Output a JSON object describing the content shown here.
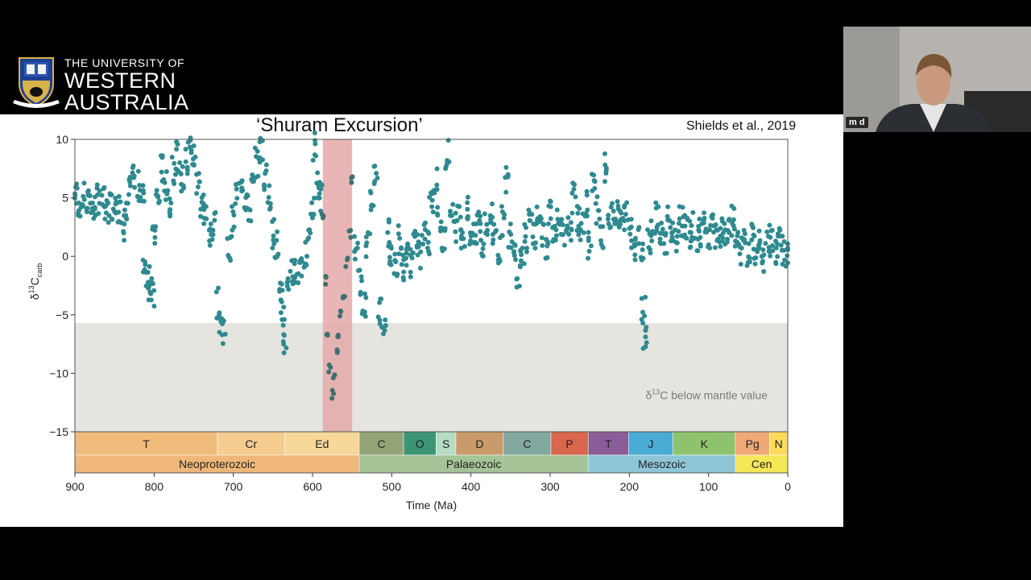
{
  "logo": {
    "line1": "THE UNIVERSITY OF",
    "line2": "WESTERN",
    "line3": "AUSTRALIA",
    "crest_icon": "uwa-crest-icon"
  },
  "slide": {
    "title": "‘Shuram Excursion’",
    "citation": "Shields et al., 2019",
    "shade_label_prefix": "δ",
    "shade_label_sup": "13",
    "shade_label_rest": "C below mantle value"
  },
  "webcam": {
    "participant_initials": "m d"
  },
  "colors": {
    "data": "#2f8a8f",
    "highlight": "#e4a9a9",
    "shade": "#e5e4df"
  },
  "chart_data": {
    "type": "scatter",
    "title": "‘Shuram Excursion’",
    "xlabel": "Time (Ma)",
    "ylabel_main": "δ",
    "ylabel_sup": "13",
    "ylabel_rest": "C",
    "ylabel_sub": "carb",
    "xlim": [
      900,
      0
    ],
    "ylim": [
      -15,
      10
    ],
    "xticks": [
      900,
      800,
      700,
      600,
      500,
      400,
      300,
      200,
      100,
      0
    ],
    "yticks": [
      10,
      5,
      0,
      -5,
      -10,
      -15
    ],
    "highlight_range": [
      587,
      550
    ],
    "shaded_below": -5.7,
    "periods": [
      {
        "label": "T",
        "from": 900,
        "to": 720,
        "color": "#efbc7b"
      },
      {
        "label": "Cr",
        "from": 720,
        "to": 635,
        "color": "#f4cc8f"
      },
      {
        "label": "Ed",
        "from": 635,
        "to": 541,
        "color": "#f7d89a"
      },
      {
        "label": "C",
        "from": 541,
        "to": 485,
        "color": "#93a376"
      },
      {
        "label": "O",
        "from": 485,
        "to": 444,
        "color": "#3c9676"
      },
      {
        "label": "S",
        "from": 444,
        "to": 419,
        "color": "#b5dcc5"
      },
      {
        "label": "D",
        "from": 419,
        "to": 359,
        "color": "#c99a6a"
      },
      {
        "label": "C",
        "from": 359,
        "to": 299,
        "color": "#82a8a0"
      },
      {
        "label": "P",
        "from": 299,
        "to": 252,
        "color": "#d9664d"
      },
      {
        "label": "T",
        "from": 252,
        "to": 201,
        "color": "#8a5d98"
      },
      {
        "label": "J",
        "from": 201,
        "to": 145,
        "color": "#4aabd4"
      },
      {
        "label": "K",
        "from": 145,
        "to": 66,
        "color": "#8fc26d"
      },
      {
        "label": "Pg",
        "from": 66,
        "to": 23,
        "color": "#f0a878"
      },
      {
        "label": "N",
        "from": 23,
        "to": 0,
        "color": "#fbdc5a"
      }
    ],
    "eras": [
      {
        "label": "Neoproterozoic",
        "from": 900,
        "to": 541,
        "color": "#efb77a"
      },
      {
        "label": "Palaeozoic",
        "from": 541,
        "to": 252,
        "color": "#a5c497"
      },
      {
        "label": "Mesozoic",
        "from": 252,
        "to": 66,
        "color": "#8ec6d8"
      },
      {
        "label": "Cen",
        "from": 66,
        "to": 0,
        "color": "#f6e65a"
      }
    ],
    "series": [
      {
        "points": [
          [
            900,
            5.2
          ],
          [
            895,
            4.6
          ],
          [
            890,
            5.0
          ],
          [
            885,
            4.5
          ],
          [
            880,
            4.8
          ],
          [
            875,
            4.2
          ],
          [
            870,
            4.9
          ],
          [
            865,
            4.6
          ],
          [
            860,
            3.8
          ],
          [
            855,
            4.4
          ],
          [
            850,
            5.0
          ],
          [
            845,
            4.0
          ],
          [
            840,
            2.5
          ],
          [
            835,
            3.5
          ],
          [
            830,
            5.5
          ],
          [
            825,
            7.0
          ],
          [
            820,
            6.0
          ],
          [
            815,
            5.0
          ],
          [
            812,
            -0.5
          ],
          [
            808,
            -1.5
          ],
          [
            805,
            -2.5
          ],
          [
            802,
            -3.5
          ],
          [
            800,
            2.0
          ],
          [
            795,
            5.0
          ],
          [
            790,
            7.5
          ],
          [
            785,
            6.0
          ],
          [
            780,
            4.5
          ],
          [
            775,
            7.5
          ],
          [
            770,
            8.5
          ],
          [
            765,
            6.5
          ],
          [
            760,
            8.0
          ],
          [
            755,
            9.3
          ],
          [
            750,
            8.5
          ],
          [
            745,
            6.5
          ],
          [
            740,
            4.5
          ],
          [
            735,
            3.5
          ],
          [
            730,
            2.0
          ],
          [
            725,
            2.5
          ],
          [
            720,
            -4.0
          ],
          [
            717,
            -5.5
          ],
          [
            712,
            -6.2
          ],
          [
            705,
            0.5
          ],
          [
            700,
            3.0
          ],
          [
            695,
            5.5
          ],
          [
            690,
            6.5
          ],
          [
            685,
            5.0
          ],
          [
            680,
            4.0
          ],
          [
            675,
            6.0
          ],
          [
            670,
            8.0
          ],
          [
            665,
            9.0
          ],
          [
            660,
            7.0
          ],
          [
            655,
            5.0
          ],
          [
            650,
            2.0
          ],
          [
            645,
            1.0
          ],
          [
            640,
            -3.5
          ],
          [
            638,
            -5.0
          ],
          [
            635,
            -7.3
          ],
          [
            630,
            -2.0
          ],
          [
            625,
            -1.5
          ],
          [
            620,
            -1.0
          ],
          [
            615,
            -0.5
          ],
          [
            610,
            0.0
          ],
          [
            605,
            1.0
          ],
          [
            600,
            4.0
          ],
          [
            597,
            9.5
          ],
          [
            593,
            6.0
          ],
          [
            590,
            5.0
          ],
          [
            587,
            3.5
          ],
          [
            584,
            -2.0
          ],
          [
            581,
            -7.0
          ],
          [
            578,
            -9.5
          ],
          [
            575,
            -11.8
          ],
          [
            573,
            -10.5
          ],
          [
            570,
            -8.0
          ],
          [
            567,
            -6.5
          ],
          [
            564,
            -5.0
          ],
          [
            560,
            -3.5
          ],
          [
            557,
            -0.5
          ],
          [
            553,
            2.0
          ],
          [
            550,
            6.5
          ],
          [
            545,
            0.5
          ],
          [
            540,
            -2.0
          ],
          [
            535,
            -4.0
          ],
          [
            530,
            1.0
          ],
          [
            525,
            5.0
          ],
          [
            520,
            7.0
          ],
          [
            515,
            -4.5
          ],
          [
            510,
            -5.5
          ],
          [
            505,
            2.0
          ],
          [
            500,
            0.0
          ],
          [
            495,
            -0.5
          ],
          [
            490,
            1.5
          ],
          [
            485,
            -1.0
          ],
          [
            480,
            0.5
          ],
          [
            475,
            -0.5
          ],
          [
            470,
            1.5
          ],
          [
            465,
            0.0
          ],
          [
            460,
            2.0
          ],
          [
            455,
            1.0
          ],
          [
            450,
            5.0
          ],
          [
            445,
            6.5
          ],
          [
            440,
            3.0
          ],
          [
            435,
            1.5
          ],
          [
            430,
            8.8
          ],
          [
            425,
            4.0
          ],
          [
            420,
            2.5
          ],
          [
            415,
            3.5
          ],
          [
            410,
            2.0
          ],
          [
            405,
            4.0
          ],
          [
            400,
            2.0
          ],
          [
            395,
            1.5
          ],
          [
            390,
            3.0
          ],
          [
            385,
            1.0
          ],
          [
            380,
            2.5
          ],
          [
            375,
            3.5
          ],
          [
            370,
            2.0
          ],
          [
            365,
            0.5
          ],
          [
            360,
            3.0
          ],
          [
            355,
            6.5
          ],
          [
            350,
            2.0
          ],
          [
            345,
            1.0
          ],
          [
            340,
            -1.5
          ],
          [
            335,
            0.5
          ],
          [
            330,
            1.5
          ],
          [
            325,
            3.0
          ],
          [
            320,
            2.0
          ],
          [
            315,
            3.5
          ],
          [
            310,
            2.0
          ],
          [
            305,
            1.0
          ],
          [
            300,
            4.0
          ],
          [
            295,
            2.5
          ],
          [
            290,
            3.0
          ],
          [
            285,
            2.0
          ],
          [
            280,
            1.5
          ],
          [
            275,
            2.5
          ],
          [
            270,
            5.0
          ],
          [
            265,
            3.0
          ],
          [
            260,
            2.5
          ],
          [
            255,
            4.5
          ],
          [
            250,
            1.0
          ],
          [
            245,
            6.0
          ],
          [
            240,
            4.0
          ],
          [
            235,
            2.0
          ],
          [
            230,
            7.5
          ],
          [
            225,
            3.0
          ],
          [
            220,
            4.0
          ],
          [
            215,
            3.5
          ],
          [
            210,
            3.0
          ],
          [
            205,
            3.5
          ],
          [
            200,
            2.5
          ],
          [
            195,
            1.0
          ],
          [
            190,
            2.0
          ],
          [
            185,
            0.0
          ],
          [
            182,
            -4.5
          ],
          [
            180,
            -6.6
          ],
          [
            175,
            1.5
          ],
          [
            170,
            2.5
          ],
          [
            165,
            3.5
          ],
          [
            160,
            2.0
          ],
          [
            155,
            1.0
          ],
          [
            150,
            3.0
          ],
          [
            145,
            2.0
          ],
          [
            140,
            1.5
          ],
          [
            135,
            3.0
          ],
          [
            130,
            2.5
          ],
          [
            125,
            2.0
          ],
          [
            120,
            2.5
          ],
          [
            115,
            1.5
          ],
          [
            110,
            2.0
          ],
          [
            105,
            2.5
          ],
          [
            100,
            2.0
          ],
          [
            95,
            2.5
          ],
          [
            90,
            1.5
          ],
          [
            85,
            2.0
          ],
          [
            80,
            1.5
          ],
          [
            75,
            2.0
          ],
          [
            70,
            3.0
          ],
          [
            65,
            1.5
          ],
          [
            60,
            0.5
          ],
          [
            55,
            1.0
          ],
          [
            50,
            0.0
          ],
          [
            45,
            1.5
          ],
          [
            40,
            0.5
          ],
          [
            35,
            1.0
          ],
          [
            30,
            0.0
          ],
          [
            25,
            1.5
          ],
          [
            20,
            1.0
          ],
          [
            15,
            0.5
          ],
          [
            10,
            1.5
          ],
          [
            5,
            0.5
          ],
          [
            0,
            0.0
          ]
        ]
      }
    ]
  }
}
